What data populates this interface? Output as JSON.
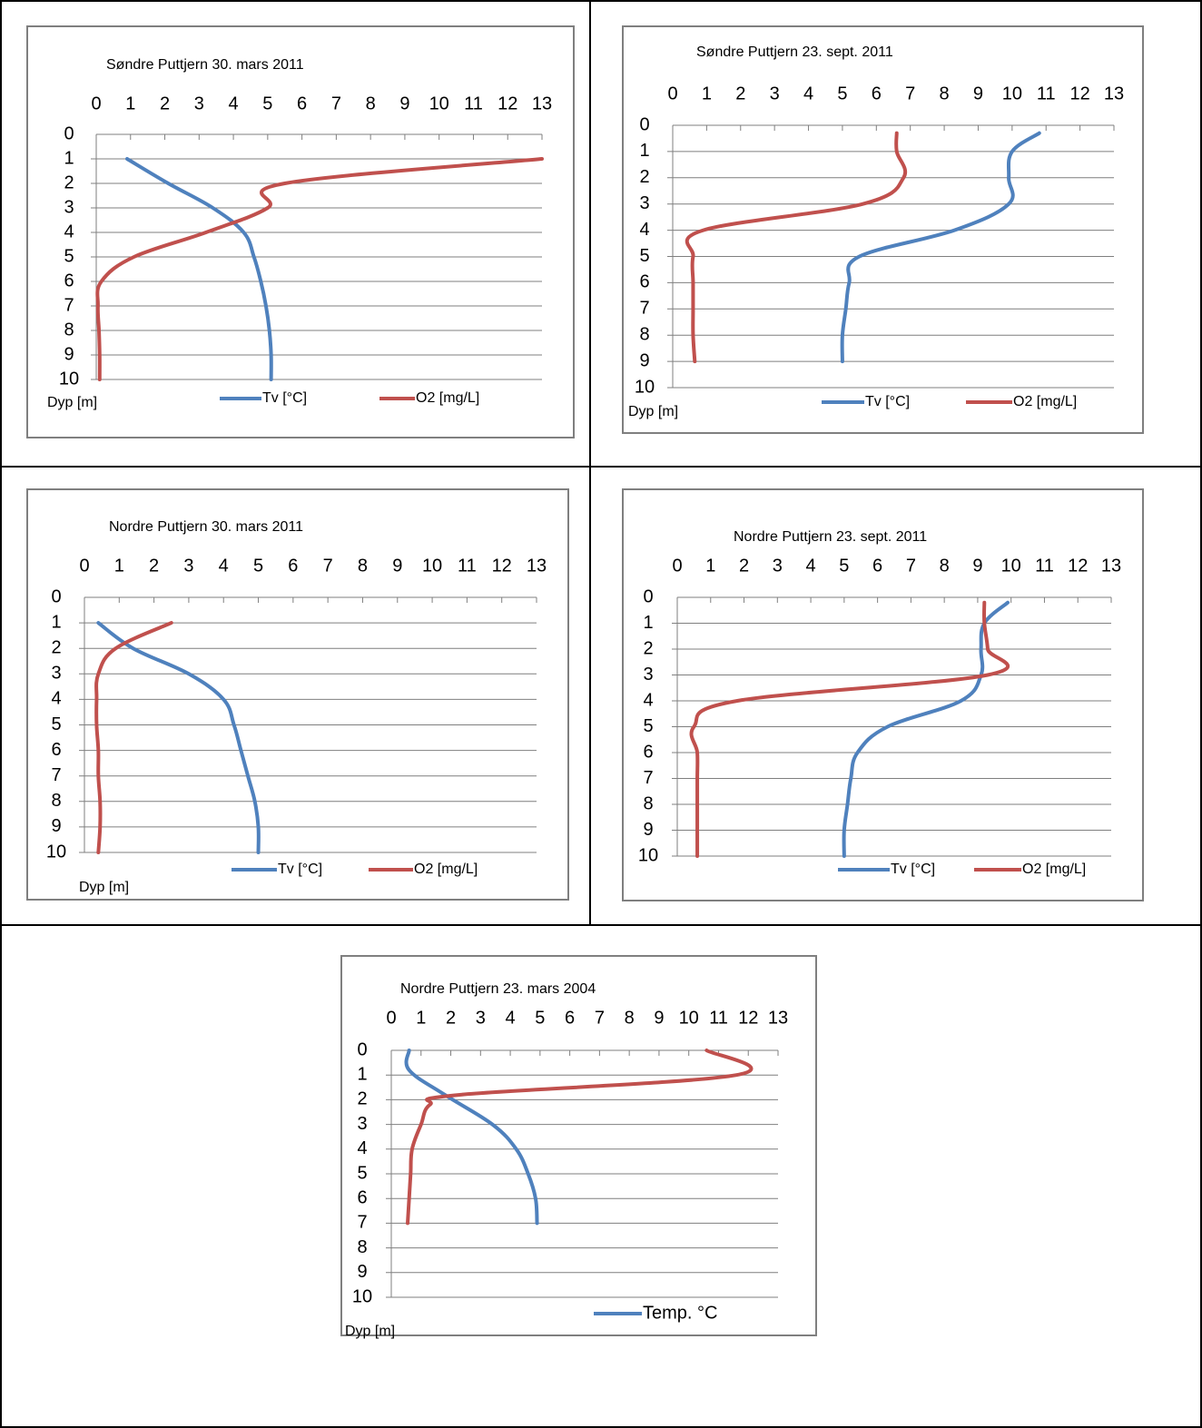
{
  "colors": {
    "temp": "#4f81bd",
    "o2": "#c0504d",
    "frame": "#7f7f7f",
    "grid": "#7f7f7f"
  },
  "chart_data": [
    {
      "type": "line",
      "title": "Søndre Puttjern 30. mars 2011",
      "ylabel": "Dyp [m]",
      "x_ticks": [
        0,
        1,
        2,
        3,
        4,
        5,
        6,
        7,
        8,
        9,
        10,
        11,
        12,
        13
      ],
      "y_ticks": [
        0,
        1,
        2,
        3,
        4,
        5,
        6,
        7,
        8,
        9,
        10
      ],
      "xlim": [
        0,
        13
      ],
      "ylim": [
        0,
        10
      ],
      "x_axis_position": "top",
      "y_axis_inverted": true,
      "grid": true,
      "legend": "bottom",
      "series": [
        {
          "name": "Tv [°C]",
          "color": "#4f81bd",
          "points": [
            [
              0.9,
              1
            ],
            [
              2.1,
              2
            ],
            [
              3.4,
              3
            ],
            [
              4.3,
              4
            ],
            [
              4.6,
              5
            ],
            [
              4.8,
              6
            ],
            [
              4.95,
              7
            ],
            [
              5.05,
              8
            ],
            [
              5.1,
              9
            ],
            [
              5.1,
              10
            ]
          ]
        },
        {
          "name": "O2 [mg/L]",
          "color": "#c0504d",
          "points": [
            [
              13,
              1
            ],
            [
              5.5,
              2
            ],
            [
              5.0,
              3
            ],
            [
              3.2,
              4
            ],
            [
              1.1,
              5
            ],
            [
              0.15,
              6
            ],
            [
              0.05,
              7
            ],
            [
              0.08,
              8
            ],
            [
              0.1,
              9
            ],
            [
              0.1,
              10
            ]
          ]
        }
      ]
    },
    {
      "type": "line",
      "title": "Søndre  Puttjern 23. sept. 2011",
      "ylabel": "Dyp [m]",
      "x_ticks": [
        0,
        1,
        2,
        3,
        4,
        5,
        6,
        7,
        8,
        9,
        10,
        11,
        12,
        13
      ],
      "y_ticks": [
        0,
        1,
        2,
        3,
        4,
        5,
        6,
        7,
        8,
        9,
        10
      ],
      "xlim": [
        0,
        13
      ],
      "ylim": [
        0,
        10
      ],
      "x_axis_position": "top",
      "y_axis_inverted": true,
      "grid": true,
      "legend": "bottom",
      "series": [
        {
          "name": "Tv [°C]",
          "color": "#4f81bd",
          "points": [
            [
              10.8,
              0.3
            ],
            [
              10.0,
              1
            ],
            [
              9.9,
              2
            ],
            [
              9.9,
              3
            ],
            [
              8.3,
              4
            ],
            [
              5.5,
              5
            ],
            [
              5.2,
              6
            ],
            [
              5.1,
              7
            ],
            [
              5.0,
              8
            ],
            [
              5.0,
              9
            ]
          ]
        },
        {
          "name": "O2 [mg/L]",
          "color": "#c0504d",
          "points": [
            [
              6.6,
              0.3
            ],
            [
              6.6,
              1
            ],
            [
              6.8,
              2
            ],
            [
              5.6,
              3
            ],
            [
              0.9,
              4
            ],
            [
              0.6,
              5
            ],
            [
              0.6,
              6
            ],
            [
              0.6,
              7
            ],
            [
              0.6,
              8
            ],
            [
              0.65,
              9
            ]
          ]
        }
      ]
    },
    {
      "type": "line",
      "title": "Nordre Puttjern 30. mars  2011",
      "ylabel": "Dyp [m]",
      "x_ticks": [
        0,
        1,
        2,
        3,
        4,
        5,
        6,
        7,
        8,
        9,
        10,
        11,
        12,
        13
      ],
      "y_ticks": [
        0,
        1,
        2,
        3,
        4,
        5,
        6,
        7,
        8,
        9,
        10
      ],
      "xlim": [
        0,
        13
      ],
      "ylim": [
        0,
        10
      ],
      "x_axis_position": "top",
      "y_axis_inverted": true,
      "grid": true,
      "legend": "bottom",
      "series": [
        {
          "name": "Tv [°C]",
          "color": "#4f81bd",
          "points": [
            [
              0.4,
              1
            ],
            [
              1.4,
              2
            ],
            [
              3.0,
              3
            ],
            [
              4.0,
              4
            ],
            [
              4.3,
              5
            ],
            [
              4.5,
              6
            ],
            [
              4.7,
              7
            ],
            [
              4.9,
              8
            ],
            [
              5.0,
              9
            ],
            [
              5.0,
              10
            ]
          ]
        },
        {
          "name": "O2 [mg/L]",
          "color": "#c0504d",
          "points": [
            [
              2.5,
              1
            ],
            [
              0.9,
              2
            ],
            [
              0.4,
              3
            ],
            [
              0.35,
              4
            ],
            [
              0.35,
              5
            ],
            [
              0.4,
              6
            ],
            [
              0.4,
              7
            ],
            [
              0.45,
              8
            ],
            [
              0.45,
              9
            ],
            [
              0.4,
              10
            ]
          ]
        }
      ]
    },
    {
      "type": "line",
      "title": "Nordre  Puttjern 23. sept. 2011",
      "ylabel": "",
      "x_ticks": [
        0,
        1,
        2,
        3,
        4,
        5,
        6,
        7,
        8,
        9,
        10,
        11,
        12,
        13
      ],
      "y_ticks": [
        0,
        1,
        2,
        3,
        4,
        5,
        6,
        7,
        8,
        9,
        10
      ],
      "xlim": [
        0,
        13
      ],
      "ylim": [
        0,
        10
      ],
      "x_axis_position": "top",
      "y_axis_inverted": true,
      "grid": true,
      "legend": "bottom",
      "series": [
        {
          "name": "Tv [°C]",
          "color": "#4f81bd",
          "points": [
            [
              9.9,
              0.2
            ],
            [
              9.2,
              1
            ],
            [
              9.1,
              2
            ],
            [
              9.1,
              3
            ],
            [
              8.5,
              4
            ],
            [
              6.3,
              5
            ],
            [
              5.4,
              6
            ],
            [
              5.2,
              7
            ],
            [
              5.1,
              8
            ],
            [
              5.0,
              9
            ],
            [
              5.0,
              10
            ]
          ]
        },
        {
          "name": "O2 [mg/L]",
          "color": "#c0504d",
          "points": [
            [
              9.2,
              0.2
            ],
            [
              9.2,
              1
            ],
            [
              9.3,
              2
            ],
            [
              9.3,
              3
            ],
            [
              1.8,
              4
            ],
            [
              0.5,
              5
            ],
            [
              0.6,
              6
            ],
            [
              0.6,
              7
            ],
            [
              0.6,
              8
            ],
            [
              0.6,
              9
            ],
            [
              0.6,
              10
            ]
          ]
        }
      ]
    },
    {
      "type": "line",
      "title": "Nordre Puttjern 23. mars 2004",
      "ylabel": "Dyp [m]",
      "x_ticks": [
        0,
        1,
        2,
        3,
        4,
        5,
        6,
        7,
        8,
        9,
        10,
        11,
        12,
        13
      ],
      "y_ticks": [
        0,
        1,
        2,
        3,
        4,
        5,
        6,
        7,
        8,
        9,
        10
      ],
      "xlim": [
        0,
        13
      ],
      "ylim": [
        0,
        10
      ],
      "x_axis_position": "top",
      "y_axis_inverted": true,
      "grid": true,
      "legend": "bottom",
      "series": [
        {
          "name": "Temp. °C",
          "color": "#4f81bd",
          "points": [
            [
              0.6,
              0
            ],
            [
              0.6,
              0.8
            ],
            [
              1.8,
              1.8
            ],
            [
              3.4,
              3
            ],
            [
              4.2,
              4
            ],
            [
              4.6,
              5
            ],
            [
              4.85,
              6
            ],
            [
              4.9,
              7
            ]
          ]
        },
        {
          "name": "",
          "color": "#c0504d",
          "points": [
            [
              10.6,
              0
            ],
            [
              11.6,
              1
            ],
            [
              2.3,
              1.8
            ],
            [
              1.3,
              2.2
            ],
            [
              1.0,
              3
            ],
            [
              0.7,
              4
            ],
            [
              0.65,
              5
            ],
            [
              0.6,
              6
            ],
            [
              0.55,
              7
            ]
          ]
        }
      ]
    }
  ]
}
